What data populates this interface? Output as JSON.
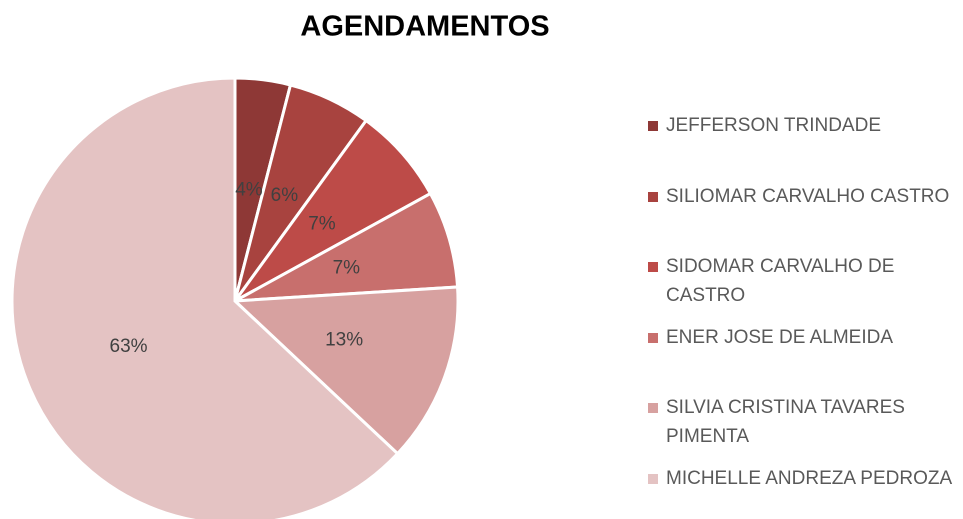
{
  "chart_data": {
    "type": "pie",
    "title": "AGENDAMENTOS",
    "categories": [
      "JEFFERSON TRINDADE",
      "SILIOMAR CARVALHO CASTRO",
      "SIDOMAR CARVALHO DE CASTRO",
      "ENER JOSE DE ALMEIDA",
      "SILVIA CRISTINA TAVARES PIMENTA",
      "MICHELLE ANDREZA PEDROZA"
    ],
    "values": [
      4,
      6,
      7,
      7,
      13,
      63
    ],
    "value_labels": [
      "4%",
      "6%",
      "7%",
      "7%",
      "13%",
      "63%"
    ],
    "colors": [
      "#8e3836",
      "#a8433f",
      "#bd4b48",
      "#c86f6d",
      "#d7a1a0",
      "#e4c3c3"
    ],
    "legend": "right"
  }
}
